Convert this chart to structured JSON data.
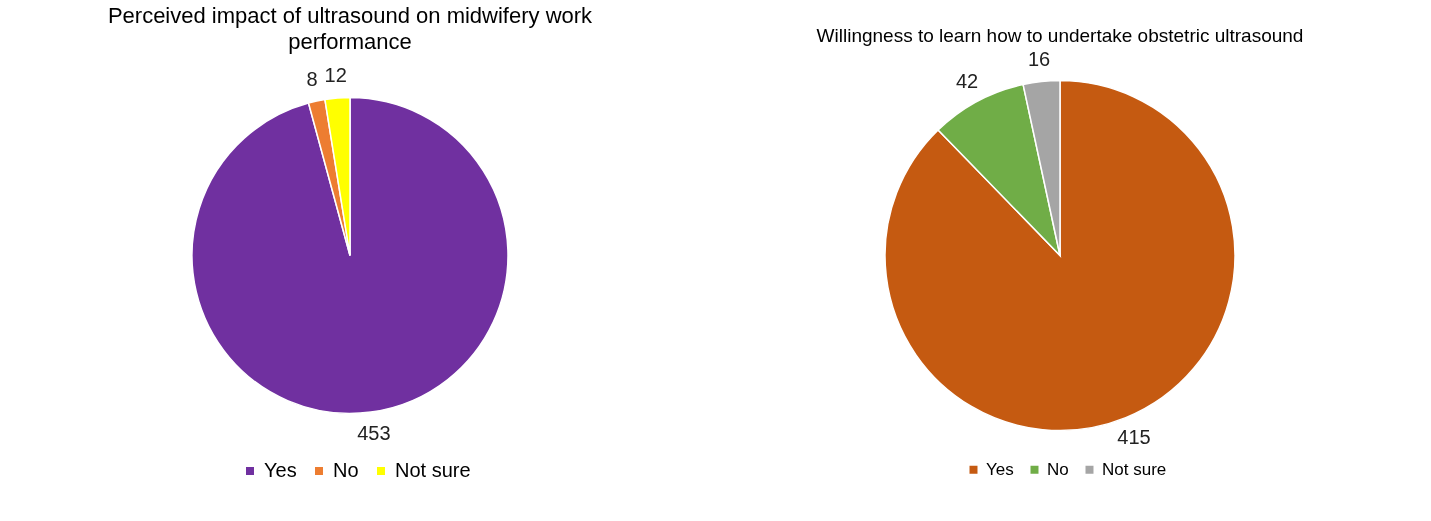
{
  "chart_data": [
    {
      "type": "pie",
      "title": "Perceived impact of ultrasound on midwifery work performance",
      "categories": [
        "Yes",
        "No",
        "Not sure"
      ],
      "values": [
        453,
        8,
        12
      ],
      "colors": [
        "#7030a0",
        "#ed7d31",
        "#ffff00"
      ],
      "data_labels": true,
      "legend": "bottom"
    },
    {
      "type": "pie",
      "title": "Willingness to learn how to undertake obstetric ultrasound",
      "categories": [
        "Yes",
        "No",
        "Not sure"
      ],
      "values": [
        415,
        42,
        16
      ],
      "colors": [
        "#c55a11",
        "#70ad47",
        "#a5a5a5"
      ],
      "data_labels": true,
      "legend": "bottom"
    }
  ]
}
